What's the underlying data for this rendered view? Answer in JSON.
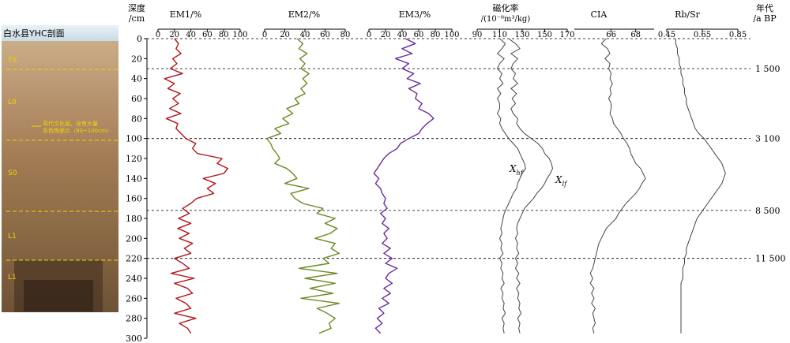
{
  "photo": {
    "title": "白水县YHC剖面",
    "layer_labels": [
      "TS",
      "L0",
      "S0",
      "L1",
      "L1"
    ],
    "annotation_line1": "周代文化层，含有大量",
    "annotation_line2": "灰色陶瓷片（90~100cm）"
  },
  "depth_axis": {
    "label_line1": "深度",
    "label_line2": "/cm",
    "ticks": [
      0,
      20,
      40,
      60,
      80,
      100,
      120,
      140,
      160,
      180,
      200,
      220,
      240,
      260,
      280,
      300
    ]
  },
  "age_axis": {
    "label_line1": "年代",
    "label_line2": "/a BP",
    "markers": [
      {
        "depth": 30,
        "label": "1 500"
      },
      {
        "depth": 100,
        "label": "3 100"
      },
      {
        "depth": 172,
        "label": "8 500"
      },
      {
        "depth": 220,
        "label": "11 500"
      }
    ]
  },
  "colors": {
    "em1": "#b3141b",
    "em2": "#6b8a23",
    "em3": "#6a2c9a",
    "sus": "#444444",
    "cia": "#444444",
    "rbsr": "#444444",
    "axis": "#000000"
  },
  "chart_data": [
    {
      "type": "line",
      "id": "em1",
      "title": "EM1/%",
      "xlim": [
        0,
        100
      ],
      "ticks": [
        0,
        20,
        40,
        60,
        80,
        100
      ],
      "depth": [
        0,
        5,
        10,
        15,
        20,
        25,
        30,
        35,
        40,
        45,
        50,
        55,
        60,
        65,
        70,
        75,
        80,
        85,
        90,
        95,
        100,
        105,
        110,
        115,
        120,
        125,
        130,
        135,
        140,
        145,
        150,
        155,
        160,
        165,
        170,
        175,
        180,
        185,
        190,
        195,
        200,
        205,
        210,
        215,
        220,
        225,
        230,
        235,
        240,
        245,
        250,
        255,
        260,
        265,
        270,
        275,
        280,
        285,
        290,
        295
      ],
      "series": [
        {
          "values": [
            20,
            25,
            22,
            28,
            18,
            23,
            15,
            30,
            8,
            20,
            12,
            27,
            18,
            25,
            14,
            28,
            10,
            24,
            22,
            28,
            34,
            46,
            42,
            48,
            78,
            72,
            85,
            80,
            55,
            70,
            60,
            68,
            47,
            40,
            30,
            38,
            25,
            40,
            24,
            38,
            26,
            42,
            32,
            40,
            20,
            30,
            38,
            16,
            44,
            20,
            36,
            42,
            22,
            34,
            40,
            20,
            46,
            26,
            36,
            40
          ]
        }
      ]
    },
    {
      "type": "line",
      "id": "em2",
      "title": "EM2/%",
      "xlim": [
        0,
        80
      ],
      "ticks": [
        0,
        20,
        40,
        60,
        80
      ],
      "depth": [
        0,
        5,
        10,
        15,
        20,
        25,
        30,
        35,
        40,
        45,
        50,
        55,
        60,
        65,
        70,
        75,
        80,
        85,
        90,
        95,
        100,
        105,
        110,
        115,
        120,
        125,
        130,
        135,
        140,
        145,
        150,
        155,
        160,
        165,
        170,
        175,
        180,
        185,
        190,
        195,
        200,
        205,
        210,
        215,
        220,
        225,
        230,
        235,
        240,
        245,
        250,
        255,
        260,
        265,
        270,
        275,
        280,
        285,
        290,
        295
      ],
      "series": [
        {
          "values": [
            32,
            38,
            34,
            42,
            35,
            40,
            36,
            44,
            38,
            42,
            36,
            40,
            30,
            34,
            22,
            28,
            18,
            24,
            10,
            16,
            2,
            6,
            8,
            12,
            15,
            10,
            22,
            28,
            32,
            20,
            44,
            26,
            30,
            38,
            58,
            52,
            70,
            60,
            72,
            65,
            50,
            70,
            66,
            74,
            58,
            64,
            34,
            72,
            40,
            70,
            45,
            68,
            36,
            74,
            52,
            62,
            70,
            64,
            66,
            54
          ]
        }
      ]
    },
    {
      "type": "line",
      "id": "em3",
      "title": "EM3/%",
      "xlim": [
        0,
        100
      ],
      "ticks": [
        0,
        20,
        40,
        60,
        80,
        100
      ],
      "depth": [
        0,
        5,
        10,
        15,
        20,
        25,
        30,
        35,
        40,
        45,
        50,
        55,
        60,
        65,
        70,
        75,
        80,
        85,
        90,
        95,
        100,
        105,
        110,
        115,
        120,
        125,
        130,
        135,
        140,
        145,
        150,
        155,
        160,
        165,
        170,
        175,
        180,
        185,
        190,
        195,
        200,
        205,
        210,
        215,
        220,
        225,
        230,
        235,
        240,
        245,
        250,
        255,
        260,
        265,
        270,
        275,
        280,
        285,
        290,
        295
      ],
      "series": [
        {
          "values": [
            44,
            56,
            40,
            52,
            32,
            48,
            40,
            54,
            46,
            62,
            48,
            58,
            56,
            64,
            60,
            72,
            78,
            70,
            64,
            60,
            48,
            38,
            34,
            24,
            18,
            14,
            10,
            6,
            12,
            8,
            14,
            16,
            20,
            18,
            22,
            14,
            20,
            16,
            24,
            18,
            22,
            16,
            26,
            18,
            28,
            20,
            34,
            24,
            20,
            28,
            18,
            26,
            16,
            24,
            12,
            18,
            10,
            16,
            8,
            14
          ]
        }
      ]
    },
    {
      "type": "line",
      "id": "sus",
      "title_line1": "磁化率",
      "title_line2": "/(10⁻⁸m³/kg)",
      "xlim": [
        90,
        170
      ],
      "ticks": [
        90,
        110,
        130,
        150,
        170
      ],
      "depth": [
        0,
        5,
        10,
        15,
        20,
        25,
        30,
        35,
        40,
        45,
        50,
        55,
        60,
        65,
        70,
        75,
        80,
        85,
        90,
        95,
        100,
        105,
        110,
        115,
        120,
        125,
        130,
        135,
        140,
        145,
        150,
        155,
        160,
        165,
        170,
        175,
        180,
        185,
        190,
        195,
        200,
        205,
        210,
        215,
        220,
        225,
        230,
        235,
        240,
        245,
        250,
        255,
        260,
        265,
        270,
        275,
        280,
        285,
        290,
        295
      ],
      "series": [
        {
          "name": "Xhf",
          "values": [
            110,
            115,
            112,
            108,
            114,
            110,
            108,
            112,
            110,
            113,
            108,
            111,
            108,
            110,
            110,
            108,
            111,
            110,
            112,
            115,
            118,
            122,
            126,
            128,
            130,
            132,
            133,
            130,
            128,
            126,
            125,
            122,
            120,
            118,
            116,
            114,
            113,
            112,
            111,
            112,
            110,
            112,
            111,
            113,
            110,
            112,
            111,
            113,
            112,
            114,
            111,
            113,
            112,
            114,
            113,
            115,
            112,
            114,
            113,
            114
          ]
        },
        {
          "name": "Xlf",
          "values": [
            118,
            124,
            128,
            120,
            126,
            122,
            120,
            124,
            122,
            126,
            120,
            125,
            121,
            124,
            120,
            122,
            126,
            125,
            128,
            132,
            138,
            144,
            148,
            150,
            154,
            156,
            157,
            155,
            152,
            150,
            147,
            143,
            140,
            136,
            132,
            130,
            128,
            126,
            125,
            126,
            124,
            126,
            125,
            127,
            124,
            126,
            124,
            127,
            125,
            128,
            125,
            127,
            126,
            128,
            127,
            129,
            126,
            128,
            127,
            128
          ]
        }
      ],
      "annotations": [
        {
          "base": "X",
          "sub": "hf"
        },
        {
          "base": "X",
          "sub": "lf"
        }
      ]
    },
    {
      "type": "line",
      "id": "cia",
      "title": "CIA",
      "xlim": [
        63,
        69.5
      ],
      "ticks": [
        66,
        68
      ],
      "depth": [
        0,
        5,
        10,
        15,
        20,
        25,
        30,
        35,
        40,
        45,
        50,
        55,
        60,
        65,
        70,
        75,
        80,
        85,
        90,
        95,
        100,
        105,
        110,
        115,
        120,
        125,
        130,
        135,
        140,
        145,
        150,
        155,
        160,
        165,
        170,
        175,
        180,
        185,
        190,
        195,
        200,
        205,
        210,
        215,
        220,
        225,
        230,
        235,
        240,
        245,
        250,
        255,
        260,
        265,
        270,
        275,
        280,
        285,
        290,
        295
      ],
      "series": [
        {
          "values": [
            65.6,
            65.2,
            65.7,
            65.9,
            65.5,
            65.9,
            65.8,
            66.0,
            65.9,
            66.1,
            65.9,
            66.0,
            65.8,
            66.0,
            66.0,
            65.9,
            66.1,
            66.2,
            66.5,
            66.8,
            67.0,
            67.3,
            67.5,
            67.6,
            67.8,
            68.0,
            68.4,
            68.6,
            68.8,
            68.5,
            68.3,
            68.0,
            67.6,
            67.2,
            66.9,
            66.6,
            66.4,
            66.0,
            65.6,
            65.4,
            65.2,
            65.0,
            64.9,
            64.8,
            64.7,
            64.6,
            64.5,
            64.3,
            64.5,
            64.3,
            64.6,
            64.4,
            64.6,
            64.4,
            64.7,
            64.5,
            64.6,
            64.7,
            64.5,
            64.6
          ]
        }
      ]
    },
    {
      "type": "line",
      "id": "rbsr",
      "title": "Rb/Sr",
      "xlim": [
        0.45,
        0.85
      ],
      "ticks": [
        0.45,
        0.65,
        0.85
      ],
      "depth": [
        0,
        5,
        10,
        15,
        20,
        25,
        30,
        35,
        40,
        45,
        50,
        55,
        60,
        65,
        70,
        75,
        80,
        85,
        90,
        95,
        100,
        105,
        110,
        115,
        120,
        125,
        130,
        135,
        140,
        145,
        150,
        155,
        160,
        165,
        170,
        175,
        180,
        185,
        190,
        195,
        200,
        205,
        210,
        215,
        220,
        225,
        230,
        235,
        240,
        245,
        250,
        255,
        260,
        265,
        270,
        275,
        280,
        285,
        290,
        295
      ],
      "series": [
        {
          "values": [
            0.5,
            0.5,
            0.51,
            0.51,
            0.52,
            0.52,
            0.53,
            0.53,
            0.54,
            0.54,
            0.55,
            0.55,
            0.56,
            0.56,
            0.57,
            0.58,
            0.59,
            0.6,
            0.61,
            0.63,
            0.66,
            0.68,
            0.7,
            0.72,
            0.74,
            0.76,
            0.77,
            0.78,
            0.77,
            0.76,
            0.74,
            0.72,
            0.7,
            0.68,
            0.66,
            0.64,
            0.62,
            0.61,
            0.6,
            0.59,
            0.58,
            0.57,
            0.56,
            0.56,
            0.55,
            0.55,
            0.54,
            0.54,
            0.54,
            0.53,
            0.53,
            0.53,
            0.53,
            0.53,
            0.53,
            0.53,
            0.53,
            0.53,
            0.53,
            0.53
          ]
        }
      ]
    }
  ]
}
